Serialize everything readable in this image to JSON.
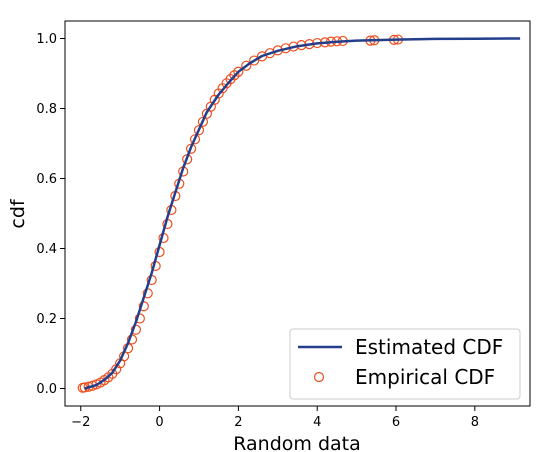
{
  "chart_data": {
    "type": "line",
    "xlabel": "Random data",
    "ylabel": "cdf",
    "xlim": [
      -2.4,
      9.4
    ],
    "ylim": [
      -0.05,
      1.05
    ],
    "x_ticks": [
      -2,
      0,
      2,
      4,
      6,
      8
    ],
    "y_ticks": [
      0.0,
      0.2,
      0.4,
      0.6,
      0.8,
      1.0
    ],
    "x_tick_labels": [
      "−2",
      "0",
      "2",
      "4",
      "6",
      "8"
    ],
    "y_tick_labels": [
      "0.0",
      "0.2",
      "0.4",
      "0.6",
      "0.8",
      "1.0"
    ],
    "grid": false,
    "legend_position": "lower-right",
    "series": [
      {
        "name": "Estimated CDF",
        "kind": "line",
        "color": "#233f8c",
        "x": [
          -1.9,
          -1.6,
          -1.4,
          -1.2,
          -1.0,
          -0.8,
          -0.6,
          -0.4,
          -0.2,
          0.0,
          0.2,
          0.4,
          0.6,
          0.8,
          1.0,
          1.2,
          1.5,
          1.8,
          2.0,
          2.3,
          2.6,
          3.0,
          3.5,
          4.0,
          4.5,
          5.0,
          6.0,
          7.0,
          8.0,
          9.15
        ],
        "y": [
          0.0,
          0.01,
          0.025,
          0.045,
          0.08,
          0.13,
          0.19,
          0.26,
          0.33,
          0.41,
          0.49,
          0.56,
          0.63,
          0.69,
          0.74,
          0.79,
          0.84,
          0.88,
          0.905,
          0.93,
          0.95,
          0.965,
          0.978,
          0.986,
          0.991,
          0.994,
          0.997,
          0.999,
          0.9995,
          1.0
        ]
      },
      {
        "name": "Empirical CDF",
        "kind": "scatter",
        "color": "#ee4d1c",
        "x": [
          -1.95,
          -1.9,
          -1.8,
          -1.7,
          -1.6,
          -1.5,
          -1.4,
          -1.3,
          -1.2,
          -1.1,
          -1.0,
          -0.9,
          -0.8,
          -0.7,
          -0.6,
          -0.5,
          -0.4,
          -0.3,
          -0.2,
          -0.1,
          0.0,
          0.1,
          0.2,
          0.3,
          0.4,
          0.5,
          0.6,
          0.7,
          0.8,
          0.9,
          1.0,
          1.1,
          1.2,
          1.3,
          1.4,
          1.5,
          1.6,
          1.7,
          1.8,
          1.9,
          2.0,
          2.2,
          2.4,
          2.6,
          2.8,
          3.0,
          3.2,
          3.4,
          3.6,
          3.8,
          4.0,
          4.2,
          4.35,
          4.5,
          4.65,
          5.35,
          5.45,
          5.95,
          6.05
        ],
        "y": [
          0.002,
          0.003,
          0.005,
          0.008,
          0.012,
          0.017,
          0.024,
          0.032,
          0.042,
          0.055,
          0.072,
          0.092,
          0.115,
          0.14,
          0.168,
          0.2,
          0.235,
          0.272,
          0.31,
          0.35,
          0.39,
          0.43,
          0.47,
          0.51,
          0.55,
          0.585,
          0.62,
          0.655,
          0.685,
          0.712,
          0.738,
          0.762,
          0.785,
          0.805,
          0.825,
          0.843,
          0.858,
          0.872,
          0.884,
          0.895,
          0.905,
          0.922,
          0.937,
          0.949,
          0.958,
          0.966,
          0.972,
          0.977,
          0.981,
          0.984,
          0.987,
          0.989,
          0.991,
          0.992,
          0.993,
          0.994,
          0.995,
          0.996,
          0.997
        ]
      }
    ],
    "legend": [
      {
        "label": "Estimated CDF"
      },
      {
        "label": "Empirical CDF"
      }
    ]
  }
}
